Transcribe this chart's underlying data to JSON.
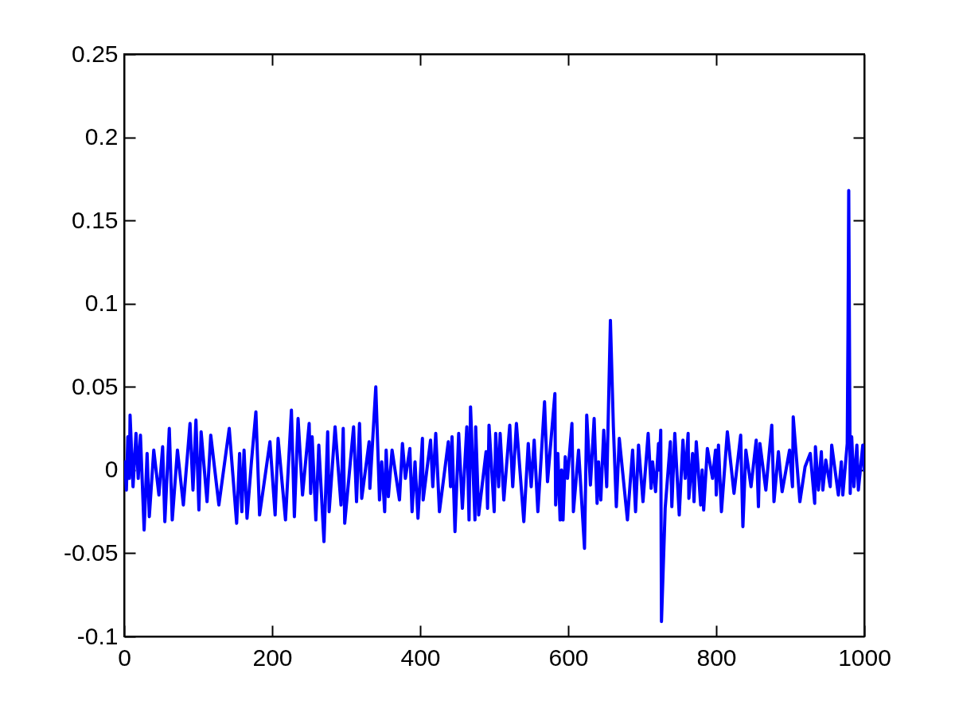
{
  "chart_data": {
    "type": "line",
    "x": [
      1,
      3,
      5,
      7,
      8,
      12,
      16,
      19,
      22,
      27,
      31,
      34,
      40,
      47,
      52,
      55,
      61,
      65,
      72,
      80,
      89,
      93,
      97,
      101,
      104,
      112,
      117,
      128,
      142,
      152,
      156,
      159,
      162,
      166,
      172,
      178,
      183,
      197,
      204,
      208,
      218,
      226,
      230,
      235,
      241,
      250,
      252,
      254,
      259,
      263,
      270,
      275,
      277,
      285,
      293,
      296,
      298,
      310,
      314,
      318,
      321,
      331,
      332,
      340,
      345,
      348,
      352,
      354,
      357,
      362,
      372,
      376,
      380,
      386,
      389,
      393,
      397,
      403,
      404,
      414,
      417,
      421,
      426,
      438,
      441,
      443,
      447,
      452,
      457,
      463,
      466,
      468,
      474,
      475,
      479,
      489,
      491,
      493,
      500,
      502,
      506,
      508,
      513,
      521,
      525,
      530,
      540,
      546,
      550,
      554,
      559,
      568,
      572,
      582,
      583,
      586,
      589,
      591,
      593,
      596,
      599,
      605,
      607,
      614,
      622,
      625,
      630,
      635,
      639,
      641,
      644,
      648,
      652,
      657,
      661,
      665,
      669,
      680,
      687,
      691,
      695,
      701,
      708,
      712,
      714,
      718,
      722,
      723,
      725,
      726,
      731,
      738,
      740,
      744,
      750,
      755,
      758,
      762,
      763,
      768,
      770,
      773,
      779,
      781,
      783,
      788,
      795,
      799,
      800,
      803,
      807,
      815,
      824,
      833,
      836,
      840,
      847,
      854,
      857,
      859,
      867,
      875,
      878,
      884,
      889,
      899,
      903,
      904,
      913,
      920,
      927,
      933,
      934,
      938,
      942,
      944,
      948,
      954,
      956,
      965,
      969,
      971,
      977,
      978,
      979,
      981,
      983,
      986,
      990,
      992,
      998,
      1000
    ],
    "series": [
      {
        "color": "#0000ff",
        "values": [
          0.005,
          -0.012,
          0.02,
          -0.005,
          0.033,
          -0.01,
          0.022,
          -0.005,
          0.021,
          -0.036,
          0.01,
          -0.028,
          0.012,
          -0.015,
          0.014,
          -0.031,
          0.025,
          -0.03,
          0.012,
          -0.021,
          0.028,
          -0.012,
          0.03,
          -0.024,
          0.023,
          -0.019,
          0.021,
          -0.021,
          0.025,
          -0.032,
          0.01,
          -0.025,
          0.012,
          -0.029,
          0.005,
          0.035,
          -0.027,
          0.017,
          -0.027,
          0.019,
          -0.03,
          0.036,
          -0.028,
          0.031,
          -0.015,
          0.028,
          -0.014,
          0.02,
          -0.03,
          0.015,
          -0.043,
          0.023,
          -0.025,
          0.026,
          -0.021,
          0.025,
          -0.032,
          0.026,
          -0.019,
          0.028,
          -0.017,
          0.017,
          -0.011,
          0.05,
          -0.018,
          0.005,
          -0.025,
          0.012,
          -0.016,
          0.012,
          -0.018,
          0.016,
          -0.005,
          0.013,
          -0.025,
          0.005,
          -0.029,
          0.019,
          -0.018,
          0.018,
          -0.01,
          0.022,
          -0.025,
          0.017,
          -0.01,
          0.02,
          -0.037,
          0.022,
          -0.023,
          0.026,
          -0.03,
          0.038,
          -0.03,
          0.026,
          -0.027,
          0.011,
          -0.023,
          0.027,
          -0.025,
          0.022,
          -0.01,
          0.022,
          -0.018,
          0.027,
          -0.01,
          0.028,
          -0.031,
          0.016,
          -0.01,
          0.018,
          -0.025,
          0.041,
          -0.007,
          0.046,
          -0.021,
          0.01,
          -0.03,
          0,
          -0.03,
          0.008,
          -0.005,
          0.028,
          -0.025,
          0.012,
          -0.047,
          0.033,
          -0.009,
          0.031,
          -0.02,
          0.005,
          -0.018,
          0.024,
          -0.01,
          0.09,
          0.026,
          -0.022,
          0.019,
          -0.03,
          0.012,
          -0.025,
          0.015,
          -0.019,
          0.022,
          -0.011,
          0.005,
          -0.013,
          0.016,
          0,
          0.024,
          -0.091,
          -0.023,
          0.017,
          -0.022,
          0.022,
          -0.027,
          0.018,
          -0.005,
          0.022,
          -0.017,
          0.01,
          -0.019,
          0.017,
          -0.021,
          0,
          -0.024,
          0.013,
          -0.005,
          0.012,
          -0.015,
          0.015,
          -0.025,
          0.023,
          -0.014,
          0.021,
          -0.034,
          0.012,
          -0.01,
          0.018,
          -0.022,
          0.016,
          -0.012,
          0.027,
          -0.019,
          0.011,
          -0.013,
          0.012,
          -0.01,
          0.032,
          -0.019,
          0.002,
          0.01,
          -0.02,
          0.014,
          -0.012,
          0.011,
          -0.012,
          0.006,
          -0.01,
          0.015,
          -0.015,
          0.005,
          -0.015,
          0.016,
          0.082,
          0.168,
          -0.014,
          0.02,
          -0.01,
          0.015,
          -0.012,
          0.015,
          0
        ]
      }
    ],
    "xlim": [
      0,
      1000
    ],
    "ylim": [
      -0.1,
      0.25
    ],
    "xticks": [
      0,
      200,
      400,
      600,
      800,
      1000
    ],
    "yticks": [
      -0.1,
      -0.05,
      0,
      0.05,
      0.1,
      0.15,
      0.2,
      0.25
    ]
  }
}
